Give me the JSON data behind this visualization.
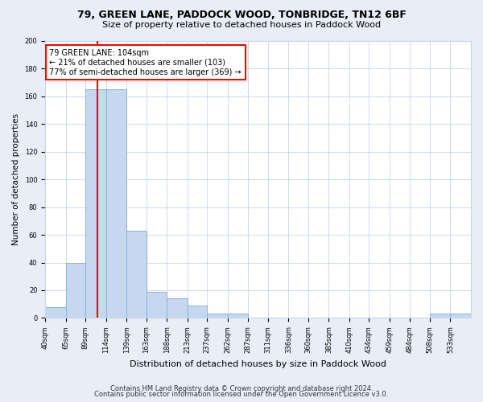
{
  "title": "79, GREEN LANE, PADDOCK WOOD, TONBRIDGE, TN12 6BF",
  "subtitle": "Size of property relative to detached houses in Paddock Wood",
  "xlabel": "Distribution of detached houses by size in Paddock Wood",
  "ylabel": "Number of detached properties",
  "bin_edges": [
    40,
    65,
    89,
    114,
    139,
    163,
    188,
    213,
    237,
    262,
    287,
    311,
    336,
    360,
    385,
    410,
    434,
    459,
    484,
    508,
    533,
    558
  ],
  "bar_heights": [
    8,
    40,
    165,
    165,
    63,
    19,
    14,
    9,
    3,
    3,
    0,
    0,
    0,
    0,
    0,
    0,
    0,
    0,
    0,
    3,
    3
  ],
  "bar_color": "#c5d8f0",
  "bar_edge_color": "#8ab4d8",
  "red_line_x": 104,
  "ylim": [
    0,
    200
  ],
  "yticks": [
    0,
    20,
    40,
    60,
    80,
    100,
    120,
    140,
    160,
    180,
    200
  ],
  "annotation_line1": "79 GREEN LANE: 104sqm",
  "annotation_line2": "← 21% of detached houses are smaller (103)",
  "annotation_line3": "77% of semi-detached houses are larger (369) →",
  "footer_line1": "Contains HM Land Registry data © Crown copyright and database right 2024.",
  "footer_line2": "Contains public sector information licensed under the Open Government Licence v3.0.",
  "bg_color": "#e8eef8",
  "plot_bg_color": "#ffffff",
  "grid_color": "#c8d4e8",
  "title_fontsize": 9,
  "subtitle_fontsize": 8,
  "ylabel_fontsize": 7.5,
  "xlabel_fontsize": 8,
  "tick_fontsize": 6,
  "annotation_fontsize": 7,
  "footer_fontsize": 6
}
